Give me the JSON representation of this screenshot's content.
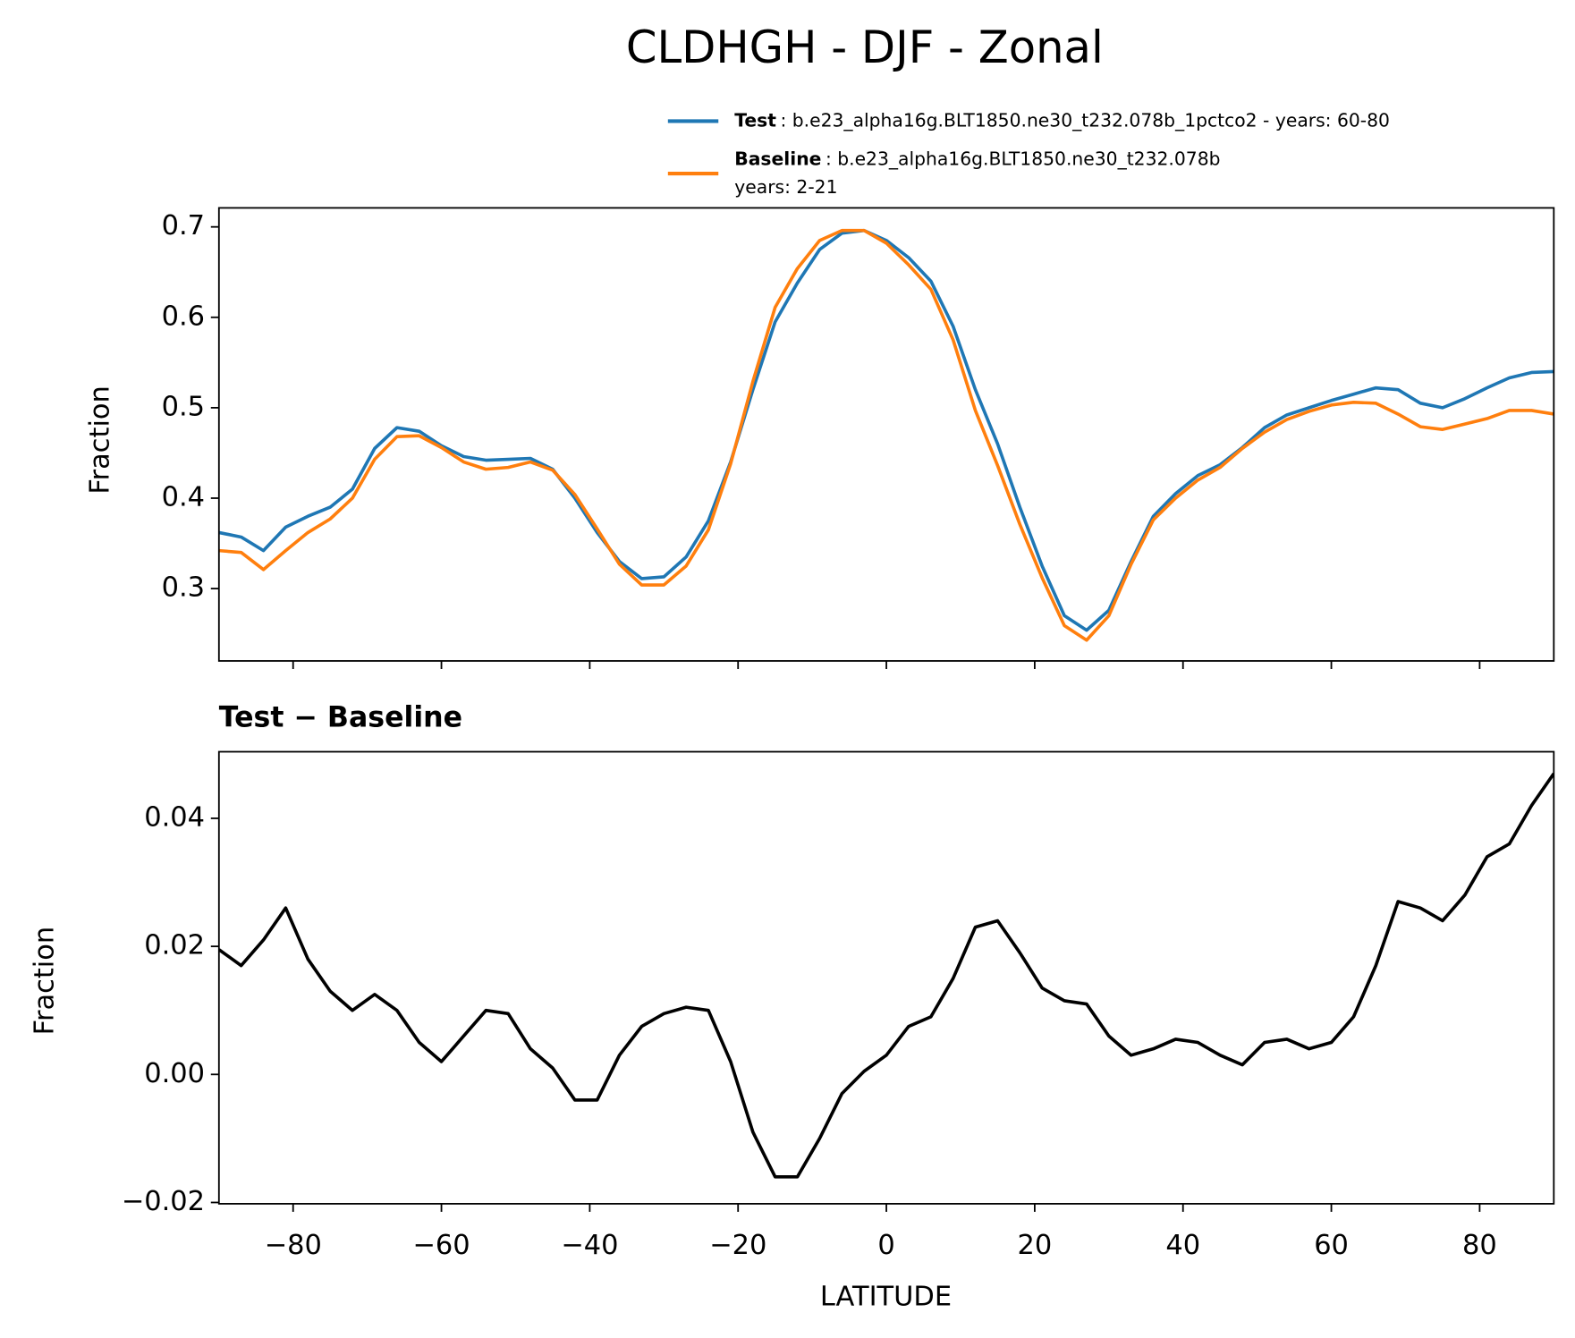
{
  "chart_data": [
    {
      "type": "line",
      "title": "CLDHGH - DJF - Zonal",
      "y_label": "Fraction",
      "x": [
        -90,
        -87,
        -84,
        -81,
        -78,
        -75,
        -72,
        -69,
        -66,
        -63,
        -60,
        -57,
        -54,
        -51,
        -48,
        -45,
        -42,
        -39,
        -36,
        -33,
        -30,
        -27,
        -24,
        -21,
        -18,
        -15,
        -12,
        -9,
        -6,
        -3,
        0,
        3,
        6,
        9,
        12,
        15,
        18,
        21,
        24,
        27,
        30,
        33,
        36,
        39,
        42,
        45,
        48,
        51,
        54,
        57,
        60,
        63,
        66,
        69,
        72,
        75,
        78,
        81,
        84,
        87,
        90
      ],
      "series": [
        {
          "name": "Test",
          "label": [
            ": b.e23_alpha16g.BLT1850.ne30_t232.078b_1pctco2 - years: 60-80"
          ],
          "color": "#1f77b4",
          "values": [
            0.362,
            0.357,
            0.342,
            0.368,
            0.38,
            0.39,
            0.41,
            0.455,
            0.478,
            0.474,
            0.458,
            0.446,
            0.442,
            0.443,
            0.444,
            0.432,
            0.4,
            0.362,
            0.33,
            0.311,
            0.313,
            0.335,
            0.375,
            0.44,
            0.52,
            0.595,
            0.638,
            0.675,
            0.693,
            0.696,
            0.685,
            0.666,
            0.64,
            0.59,
            0.52,
            0.46,
            0.39,
            0.325,
            0.27,
            0.254,
            0.276,
            0.33,
            0.38,
            0.405,
            0.425,
            0.437,
            0.456,
            0.478,
            0.492,
            0.5,
            0.508,
            0.515,
            0.522,
            0.52,
            0.505,
            0.5,
            0.51,
            0.522,
            0.533,
            0.539,
            0.54
          ]
        },
        {
          "name": "Baseline",
          "label": [
            ": b.e23_alpha16g.BLT1850.ne30_t232.078b",
            "years: 2-21"
          ],
          "color": "#ff7f0e",
          "values": [
            0.342,
            0.34,
            0.321,
            0.342,
            0.362,
            0.377,
            0.4,
            0.443,
            0.468,
            0.469,
            0.456,
            0.44,
            0.432,
            0.434,
            0.44,
            0.431,
            0.404,
            0.366,
            0.327,
            0.304,
            0.304,
            0.325,
            0.365,
            0.438,
            0.529,
            0.611,
            0.654,
            0.685,
            0.696,
            0.696,
            0.682,
            0.658,
            0.631,
            0.575,
            0.497,
            0.436,
            0.371,
            0.312,
            0.259,
            0.243,
            0.27,
            0.327,
            0.376,
            0.4,
            0.42,
            0.434,
            0.455,
            0.473,
            0.487,
            0.496,
            0.503,
            0.506,
            0.505,
            0.493,
            0.479,
            0.476,
            0.482,
            0.488,
            0.497,
            0.497,
            0.493
          ]
        }
      ],
      "xlim": [
        -90,
        90
      ],
      "ylim": [
        0.22,
        0.721
      ],
      "yticks": [
        0.3,
        0.4,
        0.5,
        0.6,
        0.7
      ],
      "grid": false
    },
    {
      "type": "line",
      "title": "Test − Baseline",
      "x_label": "LATITUDE",
      "y_label": "Fraction",
      "x": [
        -90,
        -87,
        -84,
        -81,
        -78,
        -75,
        -72,
        -69,
        -66,
        -63,
        -60,
        -57,
        -54,
        -51,
        -48,
        -45,
        -42,
        -39,
        -36,
        -33,
        -30,
        -27,
        -24,
        -21,
        -18,
        -15,
        -12,
        -9,
        -6,
        -3,
        0,
        3,
        6,
        9,
        12,
        15,
        18,
        21,
        24,
        27,
        30,
        33,
        36,
        39,
        42,
        45,
        48,
        51,
        54,
        57,
        60,
        63,
        66,
        69,
        72,
        75,
        78,
        81,
        84,
        87,
        90
      ],
      "color": "#000000",
      "values": [
        0.0195,
        0.017,
        0.021,
        0.026,
        0.018,
        0.013,
        0.01,
        0.0125,
        0.01,
        0.005,
        0.002,
        0.006,
        0.01,
        0.0095,
        0.004,
        0.001,
        -0.004,
        -0.004,
        0.003,
        0.0075,
        0.0095,
        0.0105,
        0.01,
        0.002,
        -0.009,
        -0.016,
        -0.016,
        -0.01,
        -0.003,
        0.0005,
        0.003,
        0.0075,
        0.009,
        0.015,
        0.023,
        0.024,
        0.019,
        0.0135,
        0.0115,
        0.011,
        0.006,
        0.003,
        0.004,
        0.0055,
        0.005,
        0.003,
        0.0015,
        0.005,
        0.0055,
        0.004,
        0.005,
        0.009,
        0.017,
        0.027,
        0.026,
        0.024,
        0.028,
        0.034,
        0.036,
        0.042,
        0.047
      ],
      "xlim": [
        -90,
        90
      ],
      "xticks": [
        {
          "value": -80,
          "label": "−80"
        },
        {
          "value": -60,
          "label": "−60"
        },
        {
          "value": -40,
          "label": "−40"
        },
        {
          "value": -20,
          "label": "−20"
        },
        0,
        20,
        40,
        60,
        80
      ],
      "ylim": [
        -0.0202,
        0.0504
      ],
      "yticks": [
        {
          "value": -0.02,
          "label": "−0.02"
        },
        {
          "value": 0,
          "label": "0.00"
        },
        0.02,
        0.04
      ],
      "grid": false
    }
  ]
}
